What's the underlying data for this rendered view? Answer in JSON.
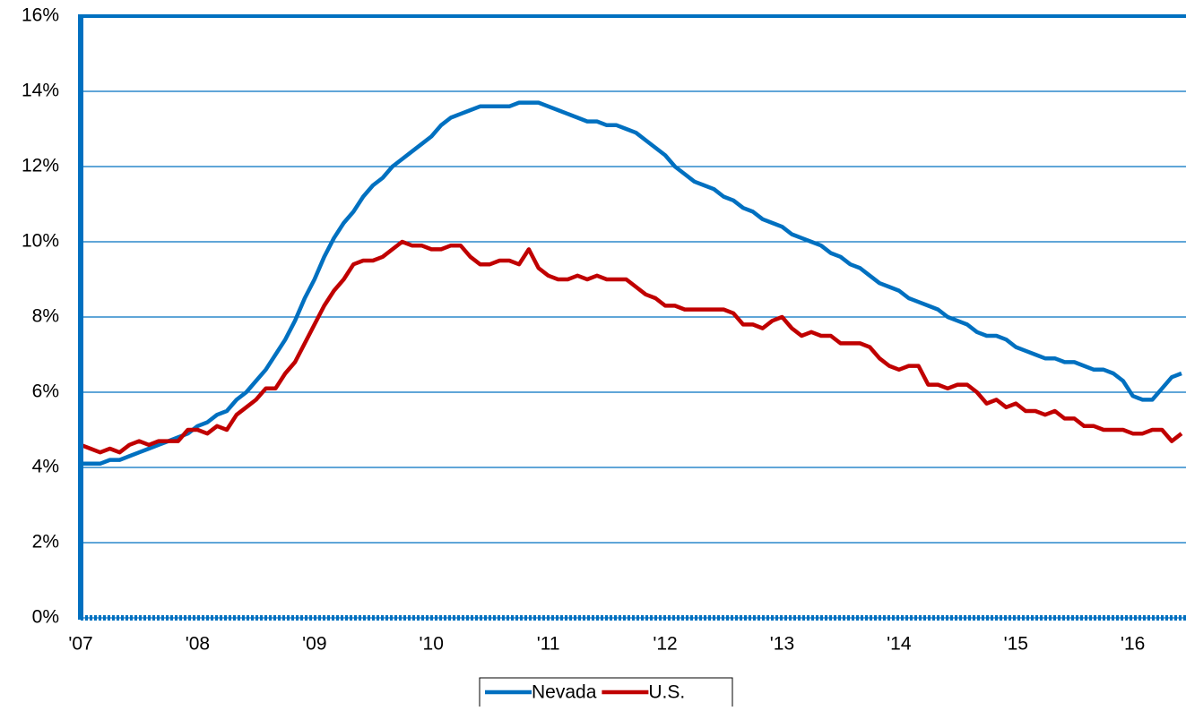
{
  "chart_data": {
    "type": "line",
    "categories": [
      "'07",
      null,
      null,
      null,
      null,
      null,
      null,
      null,
      null,
      null,
      null,
      null,
      "'08",
      null,
      null,
      null,
      null,
      null,
      null,
      null,
      null,
      null,
      null,
      null,
      "'09",
      null,
      null,
      null,
      null,
      null,
      null,
      null,
      null,
      null,
      null,
      null,
      "'10",
      null,
      null,
      null,
      null,
      null,
      null,
      null,
      null,
      null,
      null,
      null,
      "'11",
      null,
      null,
      null,
      null,
      null,
      null,
      null,
      null,
      null,
      null,
      null,
      "'12",
      null,
      null,
      null,
      null,
      null,
      null,
      null,
      null,
      null,
      null,
      null,
      "'13",
      null,
      null,
      null,
      null,
      null,
      null,
      null,
      null,
      null,
      null,
      null,
      "'14",
      null,
      null,
      null,
      null,
      null,
      null,
      null,
      null,
      null,
      null,
      null,
      "'15",
      null,
      null,
      null,
      null,
      null,
      null,
      null,
      null,
      null,
      null,
      null,
      "'16",
      null,
      null,
      null,
      null,
      null
    ],
    "series": [
      {
        "name": "Nevada",
        "color": "#0070c0",
        "values": [
          4.1,
          4.1,
          4.1,
          4.2,
          4.2,
          4.3,
          4.4,
          4.5,
          4.6,
          4.7,
          4.8,
          4.9,
          5.1,
          5.2,
          5.4,
          5.5,
          5.8,
          6.0,
          6.3,
          6.6,
          7.0,
          7.4,
          7.9,
          8.5,
          9.0,
          9.6,
          10.1,
          10.5,
          10.8,
          11.2,
          11.5,
          11.7,
          12.0,
          12.2,
          12.4,
          12.6,
          12.8,
          13.1,
          13.3,
          13.4,
          13.5,
          13.6,
          13.6,
          13.6,
          13.6,
          13.7,
          13.7,
          13.7,
          13.6,
          13.5,
          13.4,
          13.3,
          13.2,
          13.2,
          13.1,
          13.1,
          13.0,
          12.9,
          12.7,
          12.5,
          12.3,
          12.0,
          11.8,
          11.6,
          11.5,
          11.4,
          11.2,
          11.1,
          10.9,
          10.8,
          10.6,
          10.5,
          10.4,
          10.2,
          10.1,
          10.0,
          9.9,
          9.7,
          9.6,
          9.4,
          9.3,
          9.1,
          8.9,
          8.8,
          8.7,
          8.5,
          8.4,
          8.3,
          8.2,
          8.0,
          7.9,
          7.8,
          7.6,
          7.5,
          7.5,
          7.4,
          7.2,
          7.1,
          7.0,
          6.9,
          6.9,
          6.8,
          6.8,
          6.7,
          6.6,
          6.6,
          6.5,
          6.3,
          5.9,
          5.8,
          5.8,
          6.1,
          6.4,
          6.5
        ]
      },
      {
        "name": "U.S.",
        "color": "#c00000",
        "values": [
          4.6,
          4.5,
          4.4,
          4.5,
          4.4,
          4.6,
          4.7,
          4.6,
          4.7,
          4.7,
          4.7,
          5.0,
          5.0,
          4.9,
          5.1,
          5.0,
          5.4,
          5.6,
          5.8,
          6.1,
          6.1,
          6.5,
          6.8,
          7.3,
          7.8,
          8.3,
          8.7,
          9.0,
          9.4,
          9.5,
          9.5,
          9.6,
          9.8,
          10.0,
          9.9,
          9.9,
          9.8,
          9.8,
          9.9,
          9.9,
          9.6,
          9.4,
          9.4,
          9.5,
          9.5,
          9.4,
          9.8,
          9.3,
          9.1,
          9.0,
          9.0,
          9.1,
          9.0,
          9.1,
          9.0,
          9.0,
          9.0,
          8.8,
          8.6,
          8.5,
          8.3,
          8.3,
          8.2,
          8.2,
          8.2,
          8.2,
          8.2,
          8.1,
          7.8,
          7.8,
          7.7,
          7.9,
          8.0,
          7.7,
          7.5,
          7.6,
          7.5,
          7.5,
          7.3,
          7.3,
          7.3,
          7.2,
          6.9,
          6.7,
          6.6,
          6.7,
          6.7,
          6.2,
          6.2,
          6.1,
          6.2,
          6.2,
          6.0,
          5.7,
          5.8,
          5.6,
          5.7,
          5.5,
          5.5,
          5.4,
          5.5,
          5.3,
          5.3,
          5.1,
          5.1,
          5.0,
          5.0,
          5.0,
          4.9,
          4.9,
          5.0,
          5.0,
          4.7,
          4.9
        ]
      }
    ],
    "ylim": [
      0,
      16
    ],
    "yticks": [
      {
        "value": 0,
        "label": "0%"
      },
      {
        "value": 2,
        "label": "2%"
      },
      {
        "value": 4,
        "label": "4%"
      },
      {
        "value": 6,
        "label": "6%"
      },
      {
        "value": 8,
        "label": "8%"
      },
      {
        "value": 10,
        "label": "10%"
      },
      {
        "value": 12,
        "label": "12%"
      },
      {
        "value": 14,
        "label": "14%"
      },
      {
        "value": 16,
        "label": "16%"
      }
    ],
    "grid": true,
    "legend": "bottom"
  }
}
